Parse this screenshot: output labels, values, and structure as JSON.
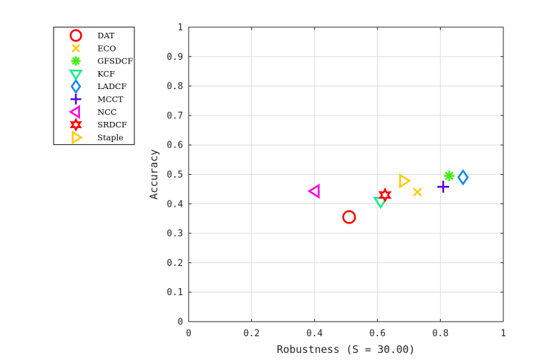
{
  "chart_data": {
    "type": "scatter",
    "xlabel": "Robustness (S = 30.00)",
    "ylabel": "Accuracy",
    "xlim": [
      0,
      1
    ],
    "ylim": [
      0,
      1
    ],
    "xticks": [
      "0",
      "0.2",
      "0.4",
      "0.6",
      "0.8",
      "1"
    ],
    "yticks": [
      "0",
      "0.1",
      "0.2",
      "0.3",
      "0.4",
      "0.5",
      "0.6",
      "0.7",
      "0.8",
      "0.9",
      "1"
    ],
    "grid": true,
    "legend_position": "outside-left",
    "series": [
      {
        "name": "DAT",
        "marker": "circle",
        "color": "#ff0000",
        "x": 0.51,
        "y": 0.355
      },
      {
        "name": "ECO",
        "marker": "x",
        "color": "#ffcc00",
        "x": 0.727,
        "y": 0.44
      },
      {
        "name": "GFSDCF",
        "marker": "asterisk",
        "color": "#44ee11",
        "x": 0.828,
        "y": 0.495
      },
      {
        "name": "KCF",
        "marker": "triangle-down",
        "color": "#11ee88",
        "x": 0.61,
        "y": 0.408
      },
      {
        "name": "LADCF",
        "marker": "diamond",
        "color": "#1188ee",
        "x": 0.872,
        "y": 0.49
      },
      {
        "name": "MCCT",
        "marker": "plus",
        "color": "#5500dd",
        "x": 0.809,
        "y": 0.458
      },
      {
        "name": "NCC",
        "marker": "triangle-left",
        "color": "#ff00dd",
        "x": 0.402,
        "y": 0.443
      },
      {
        "name": "SRDCF",
        "marker": "hexagram",
        "color": "#ff0000",
        "x": 0.624,
        "y": 0.43
      },
      {
        "name": "Staple",
        "marker": "triangle-right",
        "color": "#ffcc00",
        "x": 0.683,
        "y": 0.478
      }
    ]
  }
}
